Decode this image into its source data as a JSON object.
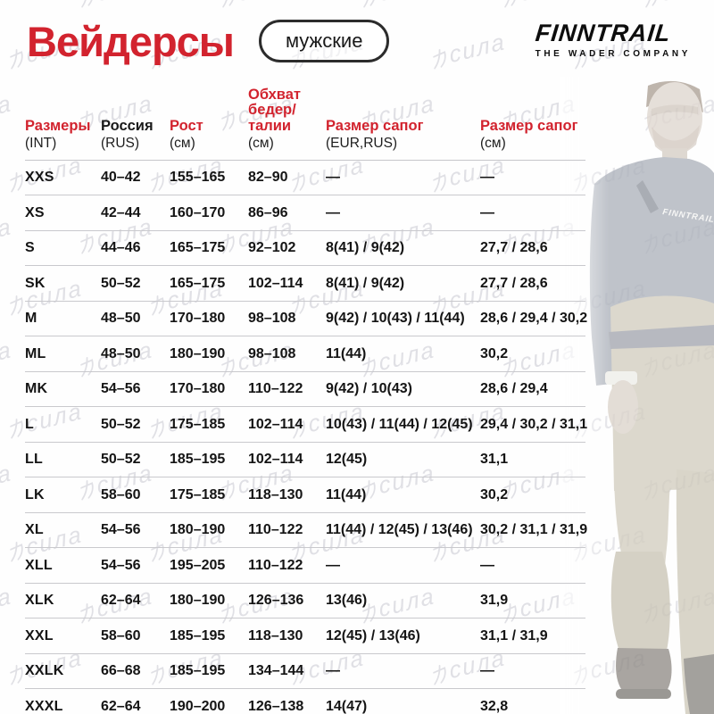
{
  "page": {
    "title": "Вейдерсы",
    "badge": "мужские"
  },
  "brand": {
    "logo": "FINNTRAIL",
    "tagline": "THE WADER COMPANY"
  },
  "watermark": {
    "text": "力сила"
  },
  "colors": {
    "accent_red": "#d2232e",
    "ink": "#1a1a1a",
    "line_gray": "#c9c9cd"
  },
  "table": {
    "columns": [
      {
        "label": "Размеры",
        "sub": "(INT)",
        "accent": true
      },
      {
        "label": "Россия",
        "sub": "(RUS)",
        "accent": false
      },
      {
        "label": "Рост",
        "sub": "(см)",
        "accent": true
      },
      {
        "label": "Обхват\nбедер/\nталии",
        "sub": "(см)",
        "accent": true
      },
      {
        "label": "Размер сапог",
        "sub": "(EUR,RUS)",
        "accent": true
      },
      {
        "label": "Размер сапог",
        "sub": "(см)",
        "accent": true
      }
    ],
    "rows": [
      [
        "XXS",
        "40–42",
        "155–165",
        "82–90",
        "—",
        "—"
      ],
      [
        "XS",
        "42–44",
        "160–170",
        "86–96",
        "—",
        "—"
      ],
      [
        "S",
        "44–46",
        "165–175",
        "92–102",
        "8(41) / 9(42)",
        "27,7 / 28,6"
      ],
      [
        "SK",
        "50–52",
        "165–175",
        "102–114",
        "8(41) / 9(42)",
        "27,7 / 28,6"
      ],
      [
        "M",
        "48–50",
        "170–180",
        "98–108",
        "9(42) / 10(43) / 11(44)",
        "28,6 / 29,4 / 30,2"
      ],
      [
        "ML",
        "48–50",
        "180–190",
        "98–108",
        "11(44)",
        "30,2"
      ],
      [
        "MK",
        "54–56",
        "170–180",
        "110–122",
        "9(42) / 10(43)",
        "28,6 / 29,4"
      ],
      [
        "L",
        "50–52",
        "175–185",
        "102–114",
        "10(43) / 11(44) / 12(45)",
        "29,4 / 30,2 / 31,1"
      ],
      [
        "LL",
        "50–52",
        "185–195",
        "102–114",
        "12(45)",
        "31,1"
      ],
      [
        "LK",
        "58–60",
        "175–185",
        "118–130",
        "11(44)",
        "30,2"
      ],
      [
        "XL",
        "54–56",
        "180–190",
        "110–122",
        "11(44) / 12(45) / 13(46)",
        "30,2 / 31,1 / 31,9"
      ],
      [
        "XLL",
        "54–56",
        "195–205",
        "110–122",
        "—",
        "—"
      ],
      [
        "XLK",
        "62–64",
        "180–190",
        "126–136",
        "13(46)",
        "31,9"
      ],
      [
        "XXL",
        "58–60",
        "185–195",
        "118–130",
        "12(45) / 13(46)",
        "31,1 / 31,9"
      ],
      [
        "XXLK",
        "66–68",
        "185–195",
        "134–144",
        "—",
        "—"
      ],
      [
        "XXXL",
        "62–64",
        "190–200",
        "126–138",
        "14(47)",
        "32,8"
      ]
    ]
  }
}
